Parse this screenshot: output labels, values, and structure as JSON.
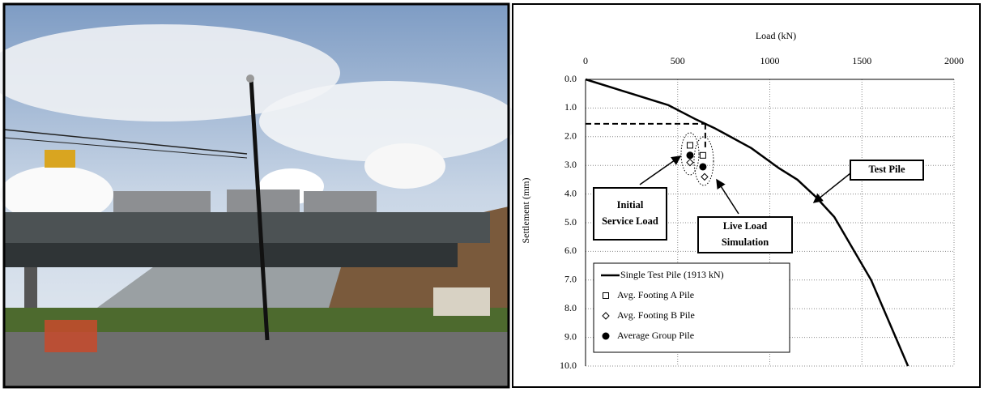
{
  "chart_data": {
    "type": "line",
    "xlabel": "Load (kN)",
    "ylabel": "Settlement (mm)",
    "xlim": [
      0,
      2000
    ],
    "xticks": [
      0,
      500,
      1000,
      1500,
      2000
    ],
    "ylim": [
      0,
      10
    ],
    "yticks": [
      {
        "value": 0,
        "label": "0.0"
      },
      {
        "value": 1,
        "label": "1.0"
      },
      {
        "value": 2,
        "label": "2.0"
      },
      {
        "value": 3,
        "label": "3.0"
      },
      {
        "value": 4,
        "label": "4.0"
      },
      {
        "value": 5,
        "label": "5.0"
      },
      {
        "value": 6,
        "label": "6.0"
      },
      {
        "value": 7,
        "label": "7.0"
      },
      {
        "value": 8,
        "label": "8.0"
      },
      {
        "value": 9,
        "label": "9.0"
      },
      {
        "value": 10,
        "label": "10.0"
      }
    ],
    "y_inverted": true,
    "grid": true,
    "series": [
      {
        "name": "Single Test Pile (1913 kN)",
        "color": "#000000",
        "marker": "none",
        "x": [
          0,
          250,
          450,
          600,
          700,
          900,
          1050,
          1150,
          1250,
          1350,
          1450,
          1550,
          1650,
          1750
        ],
        "values": [
          0,
          0.5,
          0.9,
          1.4,
          1.7,
          2.4,
          3.1,
          3.5,
          4.1,
          4.8,
          5.9,
          7.0,
          8.5,
          10.0
        ]
      },
      {
        "name": "Avg. Footing A Pile",
        "color": "#000000",
        "marker": "square-open",
        "x": [
          567,
          637
        ],
        "values": [
          2.3,
          2.65
        ]
      },
      {
        "name": "Avg. Footing B Pile",
        "color": "#000000",
        "marker": "diamond-open",
        "x": [
          567,
          646
        ],
        "values": [
          2.9,
          3.4
        ]
      },
      {
        "name": "Average Group Pile",
        "color": "#000000",
        "marker": "circle-filled",
        "x": [
          567,
          637
        ],
        "values": [
          2.65,
          3.05
        ]
      }
    ],
    "reference": {
      "x": 650,
      "y": 1.55
    },
    "annotations": [
      {
        "lines": [
          "Initial",
          "Service Load"
        ]
      },
      {
        "lines": [
          "Live Load",
          "Simulation"
        ]
      },
      {
        "lines": [
          "Test Pile"
        ]
      }
    ]
  }
}
